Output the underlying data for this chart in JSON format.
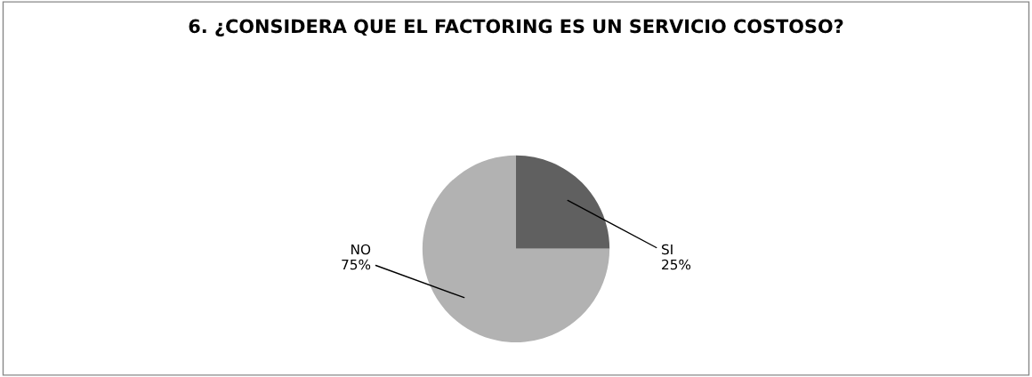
{
  "chart_data": {
    "type": "pie",
    "title": "6. ¿CONSIDERA QUE EL FACTORING ES UN SERVICIO COSTOSO?",
    "categories": [
      "SI",
      "NO"
    ],
    "values": [
      25,
      75
    ],
    "value_labels": [
      "25%",
      "75%"
    ],
    "colors": [
      "#606060",
      "#b2b2b2"
    ],
    "legend": false
  }
}
